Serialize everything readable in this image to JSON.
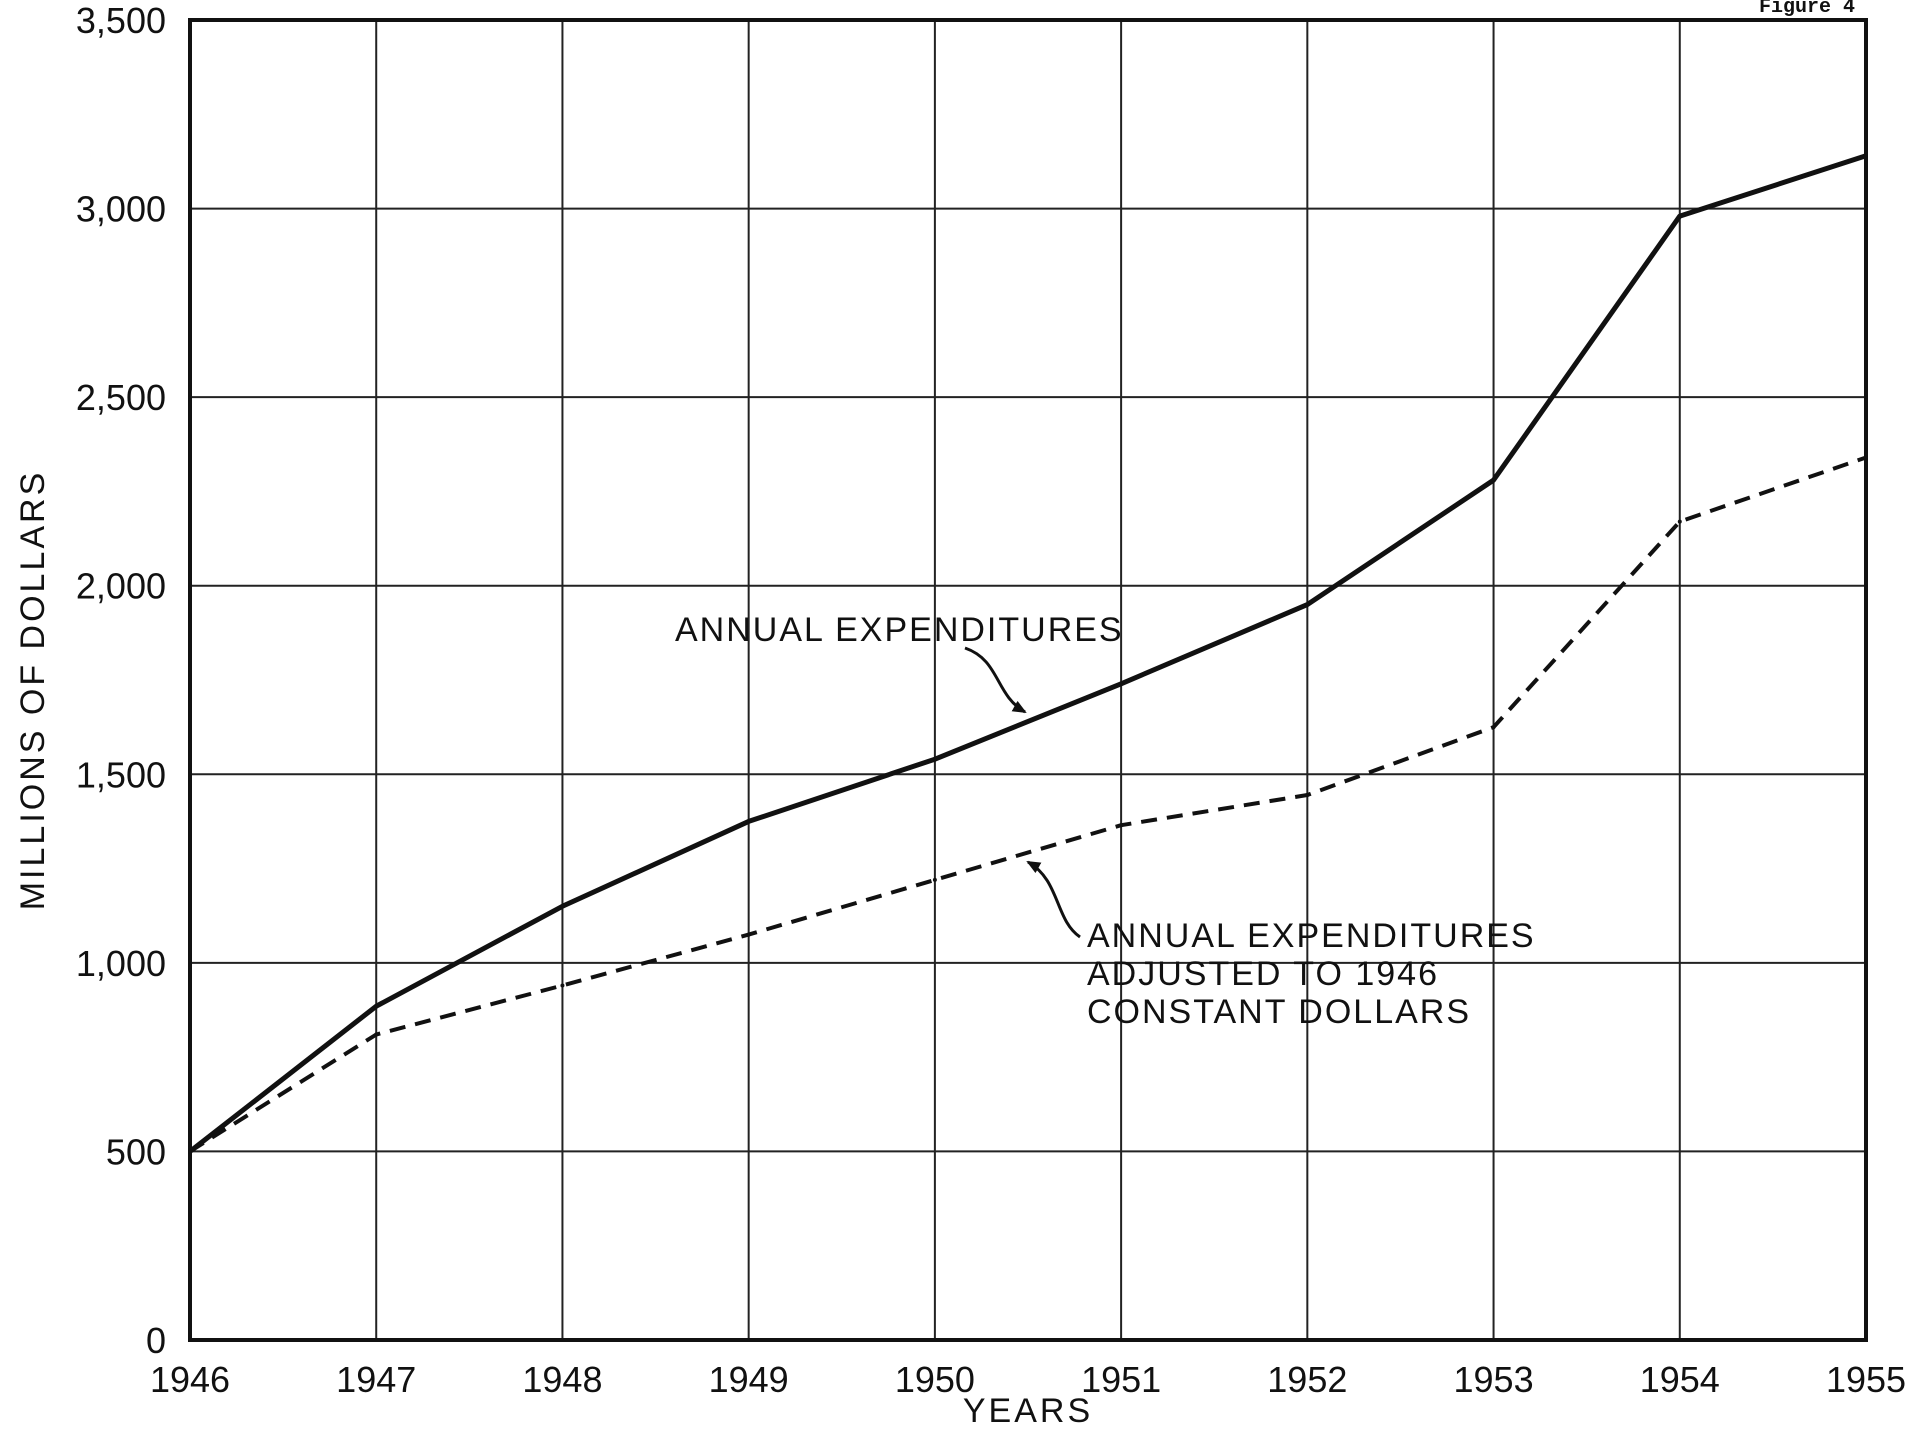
{
  "figure_label": "Figure 4",
  "chart_data": {
    "type": "line",
    "title": "",
    "xlabel": "YEARS",
    "ylabel": "MILLIONS OF DOLLARS",
    "x": [
      1946,
      1947,
      1948,
      1949,
      1950,
      1951,
      1952,
      1953,
      1954,
      1955
    ],
    "x_tick_labels": [
      "1946",
      "1947",
      "1948",
      "1949",
      "1950",
      "1951",
      "1952",
      "1953",
      "1954",
      "1955"
    ],
    "y_tick_labels": [
      "0",
      "500",
      "1,000",
      "1,500",
      "2,000",
      "2,500",
      "3,000",
      "3,500"
    ],
    "y_ticks": [
      0,
      500,
      1000,
      1500,
      2000,
      2500,
      3000,
      3500
    ],
    "xlim": [
      1946,
      1955
    ],
    "ylim": [
      0,
      3500
    ],
    "grid": true,
    "series": [
      {
        "name": "ANNUAL EXPENDITURES",
        "style": "solid",
        "values": [
          500,
          885,
          1150,
          1375,
          1540,
          1740,
          1950,
          2280,
          2980,
          3140
        ]
      },
      {
        "name": "ANNUAL EXPENDITURES ADJUSTED TO 1946 CONSTANT DOLLARS",
        "style": "dashed",
        "values": [
          500,
          810,
          940,
          1075,
          1220,
          1365,
          1445,
          1625,
          2170,
          2340
        ]
      }
    ],
    "annotations": [
      {
        "lines": [
          "ANNUAL EXPENDITURES"
        ],
        "series": 0
      },
      {
        "lines": [
          "ANNUAL EXPENDITURES",
          "ADJUSTED TO 1946",
          "CONSTANT DOLLARS"
        ],
        "series": 1
      }
    ]
  }
}
